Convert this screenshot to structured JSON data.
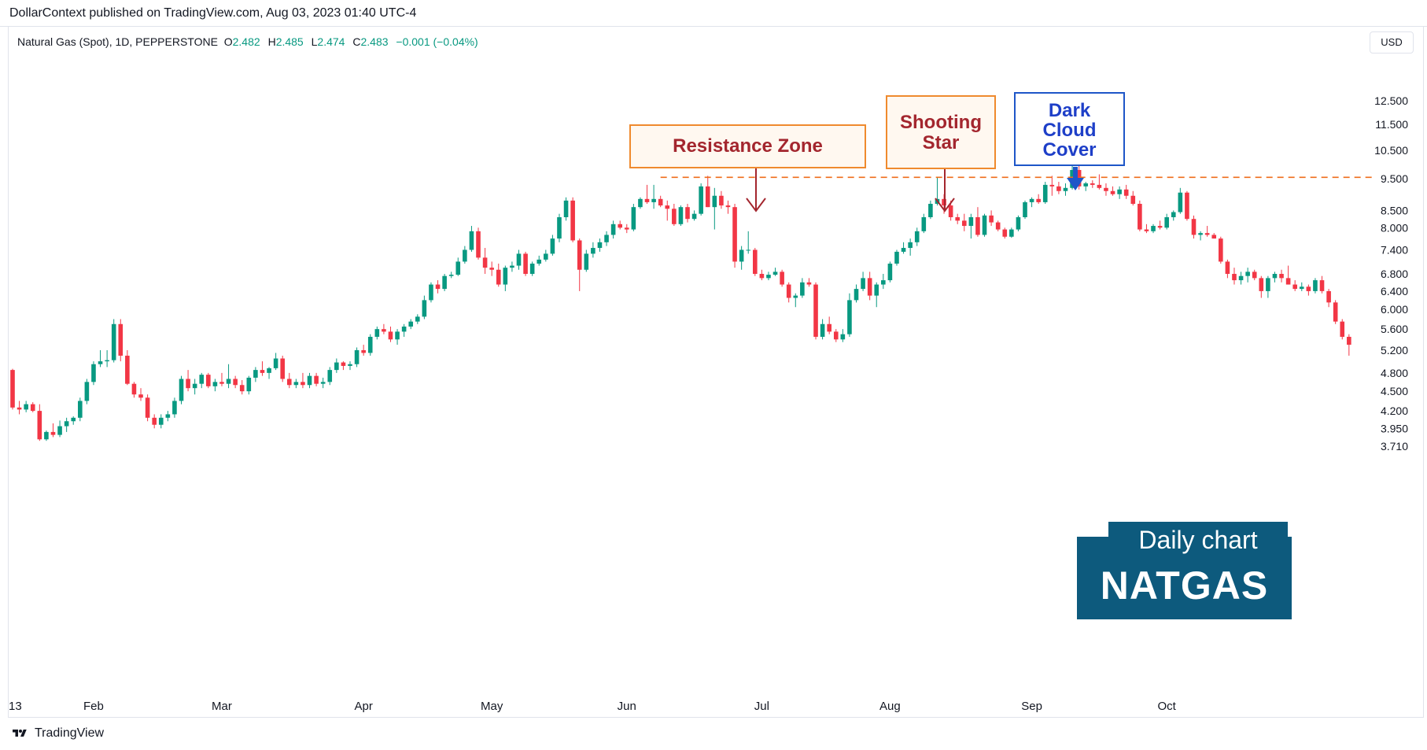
{
  "header": {
    "text": "DollarContext published on TradingView.com, Aug 03, 2023 01:40 UTC-4"
  },
  "legend": {
    "symbol": "Natural Gas (Spot), 1D, PEPPERSTONE",
    "open_label": "O",
    "open": "2.482",
    "high_label": "H",
    "high": "2.485",
    "low_label": "L",
    "low": "2.474",
    "close_label": "C",
    "close": "2.483",
    "change": "−0.001 (−0.04%)"
  },
  "currency_button": "USD",
  "annotations": {
    "resistance": "Resistance Zone",
    "shooting_star_line1": "Shooting",
    "shooting_star_line2": "Star",
    "dark_cloud_line1": "Dark",
    "dark_cloud_line2": "Cloud",
    "dark_cloud_line3": "Cover"
  },
  "badge": {
    "caption": "Daily chart",
    "title": "NATGAS"
  },
  "footer": {
    "brand": "TradingView"
  },
  "colors": {
    "up": "#089981",
    "down": "#f23645",
    "resistance_line": "#ef6c1a",
    "arrow_red": "#a3262e",
    "arrow_blue": "#1e56c8",
    "badge": "#0d5a7d"
  },
  "chart_data": {
    "type": "candlestick",
    "scale": "log",
    "y_ticks": [
      3.71,
      3.95,
      4.2,
      4.5,
      4.8,
      5.2,
      5.6,
      6.0,
      6.4,
      6.8,
      7.4,
      8.0,
      8.5,
      9.5,
      10.5,
      11.5,
      12.5
    ],
    "y_tick_labels": [
      "3.710",
      "3.950",
      "4.200",
      "4.500",
      "4.800",
      "5.200",
      "5.600",
      "6.000",
      "6.400",
      "6.800",
      "7.400",
      "8.000",
      "8.500",
      "9.500",
      "10.500",
      "11.500",
      "12.500"
    ],
    "x_tick_labels": [
      {
        "label": "13",
        "index": 0
      },
      {
        "label": "Feb",
        "index": 12
      },
      {
        "label": "Mar",
        "index": 31
      },
      {
        "label": "Apr",
        "index": 52
      },
      {
        "label": "May",
        "index": 71
      },
      {
        "label": "Jun",
        "index": 91
      },
      {
        "label": "Jul",
        "index": 111
      },
      {
        "label": "Aug",
        "index": 130
      },
      {
        "label": "Sep",
        "index": 151
      },
      {
        "label": "Oct",
        "index": 171
      }
    ],
    "resistance_level": 9.55,
    "resistance_from_index": 96,
    "candles": [
      [
        4.85,
        4.87,
        4.22,
        4.25
      ],
      [
        4.25,
        4.35,
        4.15,
        4.22
      ],
      [
        4.22,
        4.35,
        4.18,
        4.3
      ],
      [
        4.3,
        4.33,
        4.18,
        4.2
      ],
      [
        4.2,
        4.3,
        3.78,
        3.8
      ],
      [
        3.8,
        3.92,
        3.78,
        3.9
      ],
      [
        3.9,
        4.02,
        3.83,
        3.86
      ],
      [
        3.86,
        4.06,
        3.83,
        3.98
      ],
      [
        3.98,
        4.1,
        3.9,
        4.05
      ],
      [
        4.05,
        4.12,
        4.0,
        4.1
      ],
      [
        4.1,
        4.4,
        4.05,
        4.35
      ],
      [
        4.35,
        4.7,
        4.3,
        4.65
      ],
      [
        4.65,
        5.0,
        4.6,
        4.95
      ],
      [
        4.95,
        5.2,
        4.9,
        5.0
      ],
      [
        5.0,
        5.2,
        4.9,
        5.02
      ],
      [
        5.02,
        5.8,
        4.98,
        5.7
      ],
      [
        5.7,
        5.8,
        5.0,
        5.1
      ],
      [
        5.1,
        5.2,
        4.6,
        4.62
      ],
      [
        4.62,
        4.65,
        4.4,
        4.45
      ],
      [
        4.45,
        4.55,
        4.35,
        4.4
      ],
      [
        4.4,
        4.45,
        4.05,
        4.1
      ],
      [
        4.1,
        4.15,
        3.95,
        4.0
      ],
      [
        4.0,
        4.15,
        3.95,
        4.1
      ],
      [
        4.1,
        4.2,
        4.05,
        4.15
      ],
      [
        4.15,
        4.4,
        4.1,
        4.35
      ],
      [
        4.35,
        4.75,
        4.3,
        4.7
      ],
      [
        4.7,
        4.85,
        4.5,
        4.55
      ],
      [
        4.55,
        4.7,
        4.45,
        4.62
      ],
      [
        4.62,
        4.8,
        4.55,
        4.77
      ],
      [
        4.77,
        4.8,
        4.55,
        4.58
      ],
      [
        4.58,
        4.7,
        4.5,
        4.65
      ],
      [
        4.65,
        4.8,
        4.58,
        4.62
      ],
      [
        4.62,
        4.95,
        4.55,
        4.7
      ],
      [
        4.7,
        4.75,
        4.55,
        4.6
      ],
      [
        4.6,
        4.68,
        4.45,
        4.5
      ],
      [
        4.5,
        4.75,
        4.45,
        4.72
      ],
      [
        4.72,
        4.9,
        4.65,
        4.85
      ],
      [
        4.85,
        5.0,
        4.75,
        4.8
      ],
      [
        4.8,
        4.9,
        4.7,
        4.88
      ],
      [
        4.88,
        5.15,
        4.85,
        5.05
      ],
      [
        5.05,
        5.1,
        4.65,
        4.7
      ],
      [
        4.7,
        4.8,
        4.55,
        4.6
      ],
      [
        4.6,
        4.7,
        4.55,
        4.65
      ],
      [
        4.65,
        4.8,
        4.55,
        4.6
      ],
      [
        4.6,
        4.8,
        4.55,
        4.75
      ],
      [
        4.75,
        4.8,
        4.58,
        4.62
      ],
      [
        4.62,
        4.72,
        4.55,
        4.65
      ],
      [
        4.65,
        4.9,
        4.6,
        4.85
      ],
      [
        4.85,
        5.05,
        4.8,
        4.98
      ],
      [
        4.98,
        5.0,
        4.85,
        4.92
      ],
      [
        4.92,
        5.0,
        4.85,
        4.95
      ],
      [
        4.95,
        5.25,
        4.9,
        5.2
      ],
      [
        5.2,
        5.3,
        5.1,
        5.15
      ],
      [
        5.15,
        5.5,
        5.1,
        5.45
      ],
      [
        5.45,
        5.65,
        5.4,
        5.6
      ],
      [
        5.6,
        5.7,
        5.5,
        5.55
      ],
      [
        5.55,
        5.65,
        5.35,
        5.4
      ],
      [
        5.4,
        5.6,
        5.3,
        5.55
      ],
      [
        5.55,
        5.7,
        5.45,
        5.65
      ],
      [
        5.65,
        5.8,
        5.6,
        5.75
      ],
      [
        5.75,
        5.9,
        5.7,
        5.85
      ],
      [
        5.85,
        6.3,
        5.8,
        6.2
      ],
      [
        6.2,
        6.6,
        6.15,
        6.55
      ],
      [
        6.55,
        6.65,
        6.35,
        6.45
      ],
      [
        6.45,
        6.8,
        6.4,
        6.75
      ],
      [
        6.75,
        6.85,
        6.7,
        6.78
      ],
      [
        6.78,
        7.2,
        6.75,
        7.1
      ],
      [
        7.1,
        7.5,
        7.05,
        7.4
      ],
      [
        7.4,
        8.05,
        7.35,
        7.9
      ],
      [
        7.9,
        8.0,
        7.15,
        7.2
      ],
      [
        7.2,
        7.45,
        6.8,
        6.95
      ],
      [
        6.95,
        7.1,
        6.75,
        6.9
      ],
      [
        6.9,
        7.05,
        6.5,
        6.55
      ],
      [
        6.55,
        7.0,
        6.4,
        6.95
      ],
      [
        6.95,
        7.1,
        6.85,
        7.0
      ],
      [
        7.0,
        7.4,
        6.9,
        7.3
      ],
      [
        7.3,
        7.35,
        6.75,
        6.8
      ],
      [
        6.8,
        7.1,
        6.75,
        7.05
      ],
      [
        7.05,
        7.25,
        7.0,
        7.15
      ],
      [
        7.15,
        7.4,
        7.1,
        7.3
      ],
      [
        7.3,
        7.8,
        7.25,
        7.7
      ],
      [
        7.7,
        8.4,
        7.6,
        8.3
      ],
      [
        8.3,
        8.9,
        8.2,
        8.8
      ],
      [
        8.8,
        8.9,
        7.6,
        7.65
      ],
      [
        7.65,
        7.7,
        6.4,
        6.9
      ],
      [
        6.9,
        7.4,
        6.85,
        7.3
      ],
      [
        7.3,
        7.6,
        7.2,
        7.45
      ],
      [
        7.45,
        7.7,
        7.35,
        7.6
      ],
      [
        7.6,
        7.9,
        7.5,
        7.8
      ],
      [
        7.8,
        8.2,
        7.7,
        8.1
      ],
      [
        8.1,
        8.2,
        7.95,
        8.0
      ],
      [
        8.0,
        8.1,
        7.85,
        7.95
      ],
      [
        7.95,
        8.7,
        7.9,
        8.6
      ],
      [
        8.6,
        8.9,
        8.55,
        8.85
      ],
      [
        8.85,
        9.3,
        8.7,
        8.75
      ],
      [
        8.75,
        9.3,
        8.55,
        8.85
      ],
      [
        8.85,
        8.95,
        8.6,
        8.65
      ],
      [
        8.65,
        8.8,
        8.2,
        8.55
      ],
      [
        8.55,
        8.7,
        8.05,
        8.1
      ],
      [
        8.1,
        8.65,
        8.05,
        8.6
      ],
      [
        8.6,
        8.7,
        8.15,
        8.25
      ],
      [
        8.25,
        8.5,
        8.2,
        8.4
      ],
      [
        8.4,
        9.35,
        8.35,
        9.25
      ],
      [
        9.25,
        9.6,
        8.6,
        8.6
      ],
      [
        8.6,
        9.2,
        7.95,
        8.95
      ],
      [
        8.95,
        9.1,
        8.55,
        8.65
      ],
      [
        8.65,
        8.8,
        8.4,
        8.6
      ],
      [
        8.6,
        8.7,
        6.95,
        7.1
      ],
      [
        7.1,
        7.5,
        6.9,
        7.4
      ],
      [
        7.4,
        7.9,
        7.3,
        7.4
      ],
      [
        7.4,
        7.45,
        6.75,
        6.8
      ],
      [
        6.8,
        6.9,
        6.65,
        6.7
      ],
      [
        6.7,
        6.85,
        6.65,
        6.78
      ],
      [
        6.78,
        6.95,
        6.75,
        6.85
      ],
      [
        6.85,
        6.9,
        6.5,
        6.55
      ],
      [
        6.55,
        6.6,
        6.15,
        6.25
      ],
      [
        6.25,
        6.35,
        6.05,
        6.3
      ],
      [
        6.3,
        6.7,
        6.25,
        6.6
      ],
      [
        6.6,
        6.7,
        6.5,
        6.55
      ],
      [
        6.55,
        6.6,
        5.4,
        5.45
      ],
      [
        5.45,
        5.8,
        5.4,
        5.7
      ],
      [
        5.7,
        5.85,
        5.5,
        5.55
      ],
      [
        5.55,
        5.6,
        5.35,
        5.4
      ],
      [
        5.4,
        5.6,
        5.35,
        5.5
      ],
      [
        5.5,
        6.35,
        5.45,
        6.2
      ],
      [
        6.2,
        6.55,
        6.15,
        6.45
      ],
      [
        6.45,
        6.85,
        6.4,
        6.7
      ],
      [
        6.7,
        6.85,
        6.2,
        6.3
      ],
      [
        6.3,
        6.6,
        6.05,
        6.55
      ],
      [
        6.55,
        6.8,
        6.45,
        6.65
      ],
      [
        6.65,
        7.1,
        6.6,
        7.05
      ],
      [
        7.05,
        7.4,
        7.0,
        7.35
      ],
      [
        7.35,
        7.6,
        7.3,
        7.45
      ],
      [
        7.45,
        7.7,
        7.25,
        7.6
      ],
      [
        7.6,
        8.0,
        7.5,
        7.9
      ],
      [
        7.9,
        8.4,
        7.85,
        8.3
      ],
      [
        8.3,
        8.8,
        8.25,
        8.7
      ],
      [
        8.7,
        9.55,
        8.65,
        8.85
      ],
      [
        8.85,
        9.0,
        8.4,
        8.65
      ],
      [
        8.65,
        8.8,
        8.2,
        8.3
      ],
      [
        8.3,
        8.4,
        8.1,
        8.2
      ],
      [
        8.2,
        8.4,
        7.9,
        8.05
      ],
      [
        8.05,
        8.4,
        7.7,
        8.3
      ],
      [
        8.3,
        8.6,
        7.75,
        7.8
      ],
      [
        7.8,
        8.4,
        7.75,
        8.35
      ],
      [
        8.35,
        8.5,
        8.05,
        8.15
      ],
      [
        8.15,
        8.2,
        7.9,
        7.95
      ],
      [
        7.95,
        8.0,
        7.7,
        7.75
      ],
      [
        7.75,
        8.0,
        7.72,
        7.95
      ],
      [
        7.95,
        8.35,
        7.9,
        8.3
      ],
      [
        8.3,
        8.8,
        8.25,
        8.75
      ],
      [
        8.75,
        8.9,
        8.6,
        8.85
      ],
      [
        8.85,
        9.0,
        8.7,
        8.75
      ],
      [
        8.75,
        9.4,
        8.7,
        9.3
      ],
      [
        9.3,
        9.6,
        8.95,
        9.25
      ],
      [
        9.25,
        9.4,
        9.0,
        9.1
      ],
      [
        9.1,
        9.35,
        8.95,
        9.2
      ],
      [
        9.2,
        9.95,
        9.15,
        9.8
      ],
      [
        9.8,
        10.0,
        9.15,
        9.25
      ],
      [
        9.25,
        9.4,
        9.1,
        9.35
      ],
      [
        9.35,
        9.45,
        9.2,
        9.3
      ],
      [
        9.3,
        9.65,
        9.15,
        9.2
      ],
      [
        9.2,
        9.35,
        8.95,
        9.1
      ],
      [
        9.1,
        9.25,
        8.95,
        9.0
      ],
      [
        9.0,
        9.25,
        8.85,
        9.15
      ],
      [
        9.15,
        9.3,
        8.85,
        8.95
      ],
      [
        8.95,
        9.1,
        8.65,
        8.7
      ],
      [
        8.7,
        8.8,
        7.9,
        7.95
      ],
      [
        7.95,
        8.1,
        7.85,
        7.9
      ],
      [
        7.9,
        8.1,
        7.85,
        8.05
      ],
      [
        8.05,
        8.2,
        7.95,
        8.0
      ],
      [
        8.0,
        8.4,
        7.95,
        8.3
      ],
      [
        8.3,
        8.5,
        8.2,
        8.45
      ],
      [
        8.45,
        9.2,
        8.4,
        9.05
      ],
      [
        9.05,
        9.1,
        8.2,
        8.25
      ],
      [
        8.25,
        8.35,
        7.7,
        7.8
      ],
      [
        7.8,
        7.9,
        7.65,
        7.85
      ],
      [
        7.85,
        8.05,
        7.75,
        7.8
      ],
      [
        7.8,
        7.85,
        7.7,
        7.7
      ],
      [
        7.7,
        7.75,
        7.05,
        7.1
      ],
      [
        7.1,
        7.15,
        6.7,
        6.8
      ],
      [
        6.8,
        6.95,
        6.55,
        6.65
      ],
      [
        6.65,
        6.85,
        6.55,
        6.75
      ],
      [
        6.75,
        6.95,
        6.6,
        6.85
      ],
      [
        6.85,
        6.9,
        6.65,
        6.7
      ],
      [
        6.7,
        6.75,
        6.25,
        6.4
      ],
      [
        6.4,
        6.75,
        6.25,
        6.7
      ],
      [
        6.7,
        6.85,
        6.6,
        6.8
      ],
      [
        6.8,
        6.9,
        6.6,
        6.7
      ],
      [
        6.7,
        7.0,
        6.55,
        6.55
      ],
      [
        6.55,
        6.65,
        6.4,
        6.45
      ],
      [
        6.45,
        6.6,
        6.4,
        6.5
      ],
      [
        6.5,
        6.55,
        6.3,
        6.4
      ],
      [
        6.4,
        6.7,
        6.35,
        6.65
      ],
      [
        6.65,
        6.75,
        6.35,
        6.4
      ],
      [
        6.4,
        6.45,
        6.05,
        6.15
      ],
      [
        6.15,
        6.2,
        5.7,
        5.75
      ],
      [
        5.75,
        5.8,
        5.4,
        5.45
      ],
      [
        5.45,
        5.5,
        5.1,
        5.3
      ]
    ]
  }
}
